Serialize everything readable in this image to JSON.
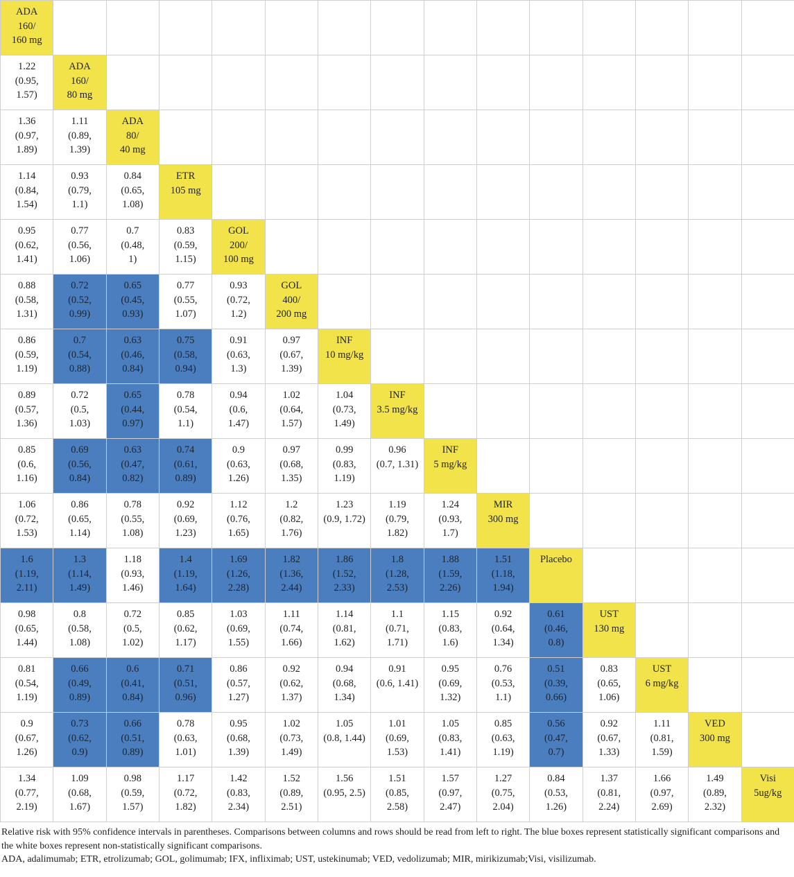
{
  "colors": {
    "significant": "#4a7ebf",
    "diagonal_label": "#f2e34a",
    "not_significant": "#ffffff",
    "grid_line": "#cfcfcf"
  },
  "rows": [
    [
      {
        "t": "ADA\n160/\n160 mg",
        "k": "label"
      }
    ],
    [
      {
        "t": "1.22\n(0.95,\n1.57)",
        "k": "n"
      },
      {
        "t": "ADA\n160/\n80 mg",
        "k": "label"
      }
    ],
    [
      {
        "t": "1.36\n(0.97,\n1.89)",
        "k": "n"
      },
      {
        "t": "1.11\n(0.89,\n1.39)",
        "k": "n"
      },
      {
        "t": "ADA\n80/\n40 mg",
        "k": "label"
      }
    ],
    [
      {
        "t": "1.14\n(0.84,\n1.54)",
        "k": "n"
      },
      {
        "t": "0.93\n(0.79,\n1.1)",
        "k": "n"
      },
      {
        "t": "0.84\n(0.65,\n1.08)",
        "k": "n"
      },
      {
        "t": "ETR\n105 mg",
        "k": "label"
      }
    ],
    [
      {
        "t": "0.95\n(0.62,\n1.41)",
        "k": "n"
      },
      {
        "t": "0.77\n(0.56,\n1.06)",
        "k": "n"
      },
      {
        "t": "0.7\n(0.48,\n1)",
        "k": "n"
      },
      {
        "t": "0.83\n(0.59,\n1.15)",
        "k": "n"
      },
      {
        "t": "GOL\n200/\n100 mg",
        "k": "label"
      }
    ],
    [
      {
        "t": "0.88\n(0.58,\n1.31)",
        "k": "n"
      },
      {
        "t": "0.72\n(0.52,\n0.99)",
        "k": "sig"
      },
      {
        "t": "0.65\n(0.45,\n0.93)",
        "k": "sig"
      },
      {
        "t": "0.77\n(0.55,\n1.07)",
        "k": "n"
      },
      {
        "t": "0.93\n(0.72,\n1.2)",
        "k": "n"
      },
      {
        "t": "GOL\n400/\n200 mg",
        "k": "label"
      }
    ],
    [
      {
        "t": "0.86\n(0.59,\n1.19)",
        "k": "n"
      },
      {
        "t": "0.7\n(0.54,\n0.88)",
        "k": "sig"
      },
      {
        "t": "0.63\n(0.46,\n0.84)",
        "k": "sig"
      },
      {
        "t": "0.75\n(0.58,\n0.94)",
        "k": "sig"
      },
      {
        "t": "0.91\n(0.63,\n1.3)",
        "k": "n"
      },
      {
        "t": "0.97\n(0.67,\n1.39)",
        "k": "n"
      },
      {
        "t": "INF\n10 mg/kg",
        "k": "label"
      }
    ],
    [
      {
        "t": "0.89\n(0.57,\n1.36)",
        "k": "n"
      },
      {
        "t": "0.72\n(0.5,\n1.03)",
        "k": "n"
      },
      {
        "t": "0.65\n(0.44,\n0.97)",
        "k": "sig"
      },
      {
        "t": "0.78\n(0.54,\n1.1)",
        "k": "n"
      },
      {
        "t": "0.94\n(0.6,\n1.47)",
        "k": "n"
      },
      {
        "t": "1.02\n(0.64,\n1.57)",
        "k": "n"
      },
      {
        "t": "1.04\n(0.73,\n1.49)",
        "k": "n"
      },
      {
        "t": "INF\n3.5 mg/kg",
        "k": "label"
      }
    ],
    [
      {
        "t": "0.85\n(0.6,\n1.16)",
        "k": "n"
      },
      {
        "t": "0.69\n(0.56,\n0.84)",
        "k": "sig"
      },
      {
        "t": "0.63\n(0.47,\n0.82)",
        "k": "sig"
      },
      {
        "t": "0.74\n(0.61,\n0.89)",
        "k": "sig"
      },
      {
        "t": "0.9\n(0.63,\n1.26)",
        "k": "n"
      },
      {
        "t": "0.97\n(0.68,\n1.35)",
        "k": "n"
      },
      {
        "t": "0.99\n(0.83,\n1.19)",
        "k": "n"
      },
      {
        "t": "0.96\n(0.7, 1.31)",
        "k": "n"
      },
      {
        "t": "INF\n5 mg/kg",
        "k": "label"
      }
    ],
    [
      {
        "t": "1.06\n(0.72,\n1.53)",
        "k": "n"
      },
      {
        "t": "0.86\n(0.65,\n1.14)",
        "k": "n"
      },
      {
        "t": "0.78\n(0.55,\n1.08)",
        "k": "n"
      },
      {
        "t": "0.92\n(0.69,\n1.23)",
        "k": "n"
      },
      {
        "t": "1.12\n(0.76,\n1.65)",
        "k": "n"
      },
      {
        "t": "1.2\n(0.82,\n1.76)",
        "k": "n"
      },
      {
        "t": "1.23\n(0.9, 1.72)",
        "k": "n"
      },
      {
        "t": "1.19\n(0.79,\n1.82)",
        "k": "n"
      },
      {
        "t": "1.24\n(0.93,\n1.7)",
        "k": "n"
      },
      {
        "t": "MIR\n300 mg",
        "k": "label"
      }
    ],
    [
      {
        "t": "1.6\n(1.19,\n2.11)",
        "k": "sig"
      },
      {
        "t": "1.3\n(1.14,\n1.49)",
        "k": "sig"
      },
      {
        "t": "1.18\n(0.93,\n1.46)",
        "k": "n"
      },
      {
        "t": "1.4\n(1.19,\n1.64)",
        "k": "sig"
      },
      {
        "t": "1.69\n(1.26,\n2.28)",
        "k": "sig"
      },
      {
        "t": "1.82\n(1.36,\n2.44)",
        "k": "sig"
      },
      {
        "t": "1.86\n(1.52,\n2.33)",
        "k": "sig"
      },
      {
        "t": "1.8\n(1.28,\n2.53)",
        "k": "sig"
      },
      {
        "t": "1.88\n(1.59,\n2.26)",
        "k": "sig"
      },
      {
        "t": "1.51\n(1.18,\n1.94)",
        "k": "sig"
      },
      {
        "t": "Placebo",
        "k": "label"
      }
    ],
    [
      {
        "t": "0.98\n(0.65,\n1.44)",
        "k": "n"
      },
      {
        "t": "0.8\n(0.58,\n1.08)",
        "k": "n"
      },
      {
        "t": "0.72\n(0.5,\n1.02)",
        "k": "n"
      },
      {
        "t": "0.85\n(0.62,\n1.17)",
        "k": "n"
      },
      {
        "t": "1.03\n(0.69,\n1.55)",
        "k": "n"
      },
      {
        "t": "1.11\n(0.74,\n1.66)",
        "k": "n"
      },
      {
        "t": "1.14\n(0.81,\n1.62)",
        "k": "n"
      },
      {
        "t": "1.1\n(0.71,\n1.71)",
        "k": "n"
      },
      {
        "t": "1.15\n(0.83,\n1.6)",
        "k": "n"
      },
      {
        "t": "0.92\n(0.64,\n1.34)",
        "k": "n"
      },
      {
        "t": "0.61\n(0.46,\n0.8)",
        "k": "sig"
      },
      {
        "t": "UST\n130 mg",
        "k": "label"
      }
    ],
    [
      {
        "t": "0.81\n(0.54,\n1.19)",
        "k": "n"
      },
      {
        "t": "0.66\n(0.49,\n0.89)",
        "k": "sig"
      },
      {
        "t": "0.6\n(0.41,\n0.84)",
        "k": "sig"
      },
      {
        "t": "0.71\n(0.51,\n0.96)",
        "k": "sig"
      },
      {
        "t": "0.86\n(0.57,\n1.27)",
        "k": "n"
      },
      {
        "t": "0.92\n(0.62,\n1.37)",
        "k": "n"
      },
      {
        "t": "0.94\n(0.68,\n1.34)",
        "k": "n"
      },
      {
        "t": "0.91\n(0.6, 1.41)",
        "k": "n"
      },
      {
        "t": "0.95\n(0.69,\n1.32)",
        "k": "n"
      },
      {
        "t": "0.76\n(0.53,\n1.1)",
        "k": "n"
      },
      {
        "t": "0.51\n(0.39,\n0.66)",
        "k": "sig"
      },
      {
        "t": "0.83\n(0.65,\n1.06)",
        "k": "n"
      },
      {
        "t": "UST\n6 mg/kg",
        "k": "label"
      }
    ],
    [
      {
        "t": "0.9\n(0.67,\n1.26)",
        "k": "n"
      },
      {
        "t": "0.73\n(0.62,\n0.9)",
        "k": "sig"
      },
      {
        "t": "0.66\n(0.51,\n0.89)",
        "k": "sig"
      },
      {
        "t": "0.78\n(0.63,\n1.01)",
        "k": "n"
      },
      {
        "t": "0.95\n(0.68,\n1.39)",
        "k": "n"
      },
      {
        "t": "1.02\n(0.73,\n1.49)",
        "k": "n"
      },
      {
        "t": "1.05\n(0.8, 1.44)",
        "k": "n"
      },
      {
        "t": "1.01\n(0.69,\n1.53)",
        "k": "n"
      },
      {
        "t": "1.05\n(0.83,\n1.41)",
        "k": "n"
      },
      {
        "t": "0.85\n(0.63,\n1.19)",
        "k": "n"
      },
      {
        "t": "0.56\n(0.47,\n0.7)",
        "k": "sig"
      },
      {
        "t": "0.92\n(0.67,\n1.33)",
        "k": "n"
      },
      {
        "t": "1.11\n(0.81,\n1.59)",
        "k": "n"
      },
      {
        "t": "VED\n300 mg",
        "k": "label"
      }
    ],
    [
      {
        "t": "1.34\n(0.77,\n2.19)",
        "k": "n"
      },
      {
        "t": "1.09\n(0.68,\n1.67)",
        "k": "n"
      },
      {
        "t": "0.98\n(0.59,\n1.57)",
        "k": "n"
      },
      {
        "t": "1.17\n(0.72,\n1.82)",
        "k": "n"
      },
      {
        "t": "1.42\n(0.83,\n2.34)",
        "k": "n"
      },
      {
        "t": "1.52\n(0.89,\n2.51)",
        "k": "n"
      },
      {
        "t": "1.56\n(0.95, 2.5)",
        "k": "n"
      },
      {
        "t": "1.51\n(0.85,\n2.58)",
        "k": "n"
      },
      {
        "t": "1.57\n(0.97,\n2.47)",
        "k": "n"
      },
      {
        "t": "1.27\n(0.75,\n2.04)",
        "k": "n"
      },
      {
        "t": "0.84\n(0.53,\n1.26)",
        "k": "n"
      },
      {
        "t": "1.37\n(0.81,\n2.24)",
        "k": "n"
      },
      {
        "t": "1.66\n(0.97,\n2.69)",
        "k": "n"
      },
      {
        "t": "1.49\n(0.89,\n2.32)",
        "k": "n"
      },
      {
        "t": "Visi\n5ug/kg",
        "k": "label"
      }
    ]
  ],
  "footnote": {
    "line1": "Relative risk with 95% confidence intervals in parentheses. Comparisons between columns and rows should be read from left to right. The blue boxes represent statistically significant comparisons and the white boxes represent non-statistically significant comparisons.",
    "line2": "ADA, adalimumab; ETR, etrolizumab; GOL, golimumab; IFX, infliximab; UST, ustekinumab; VED, vedolizumab; MIR, mirikizumab;Visi, visilizumab."
  }
}
